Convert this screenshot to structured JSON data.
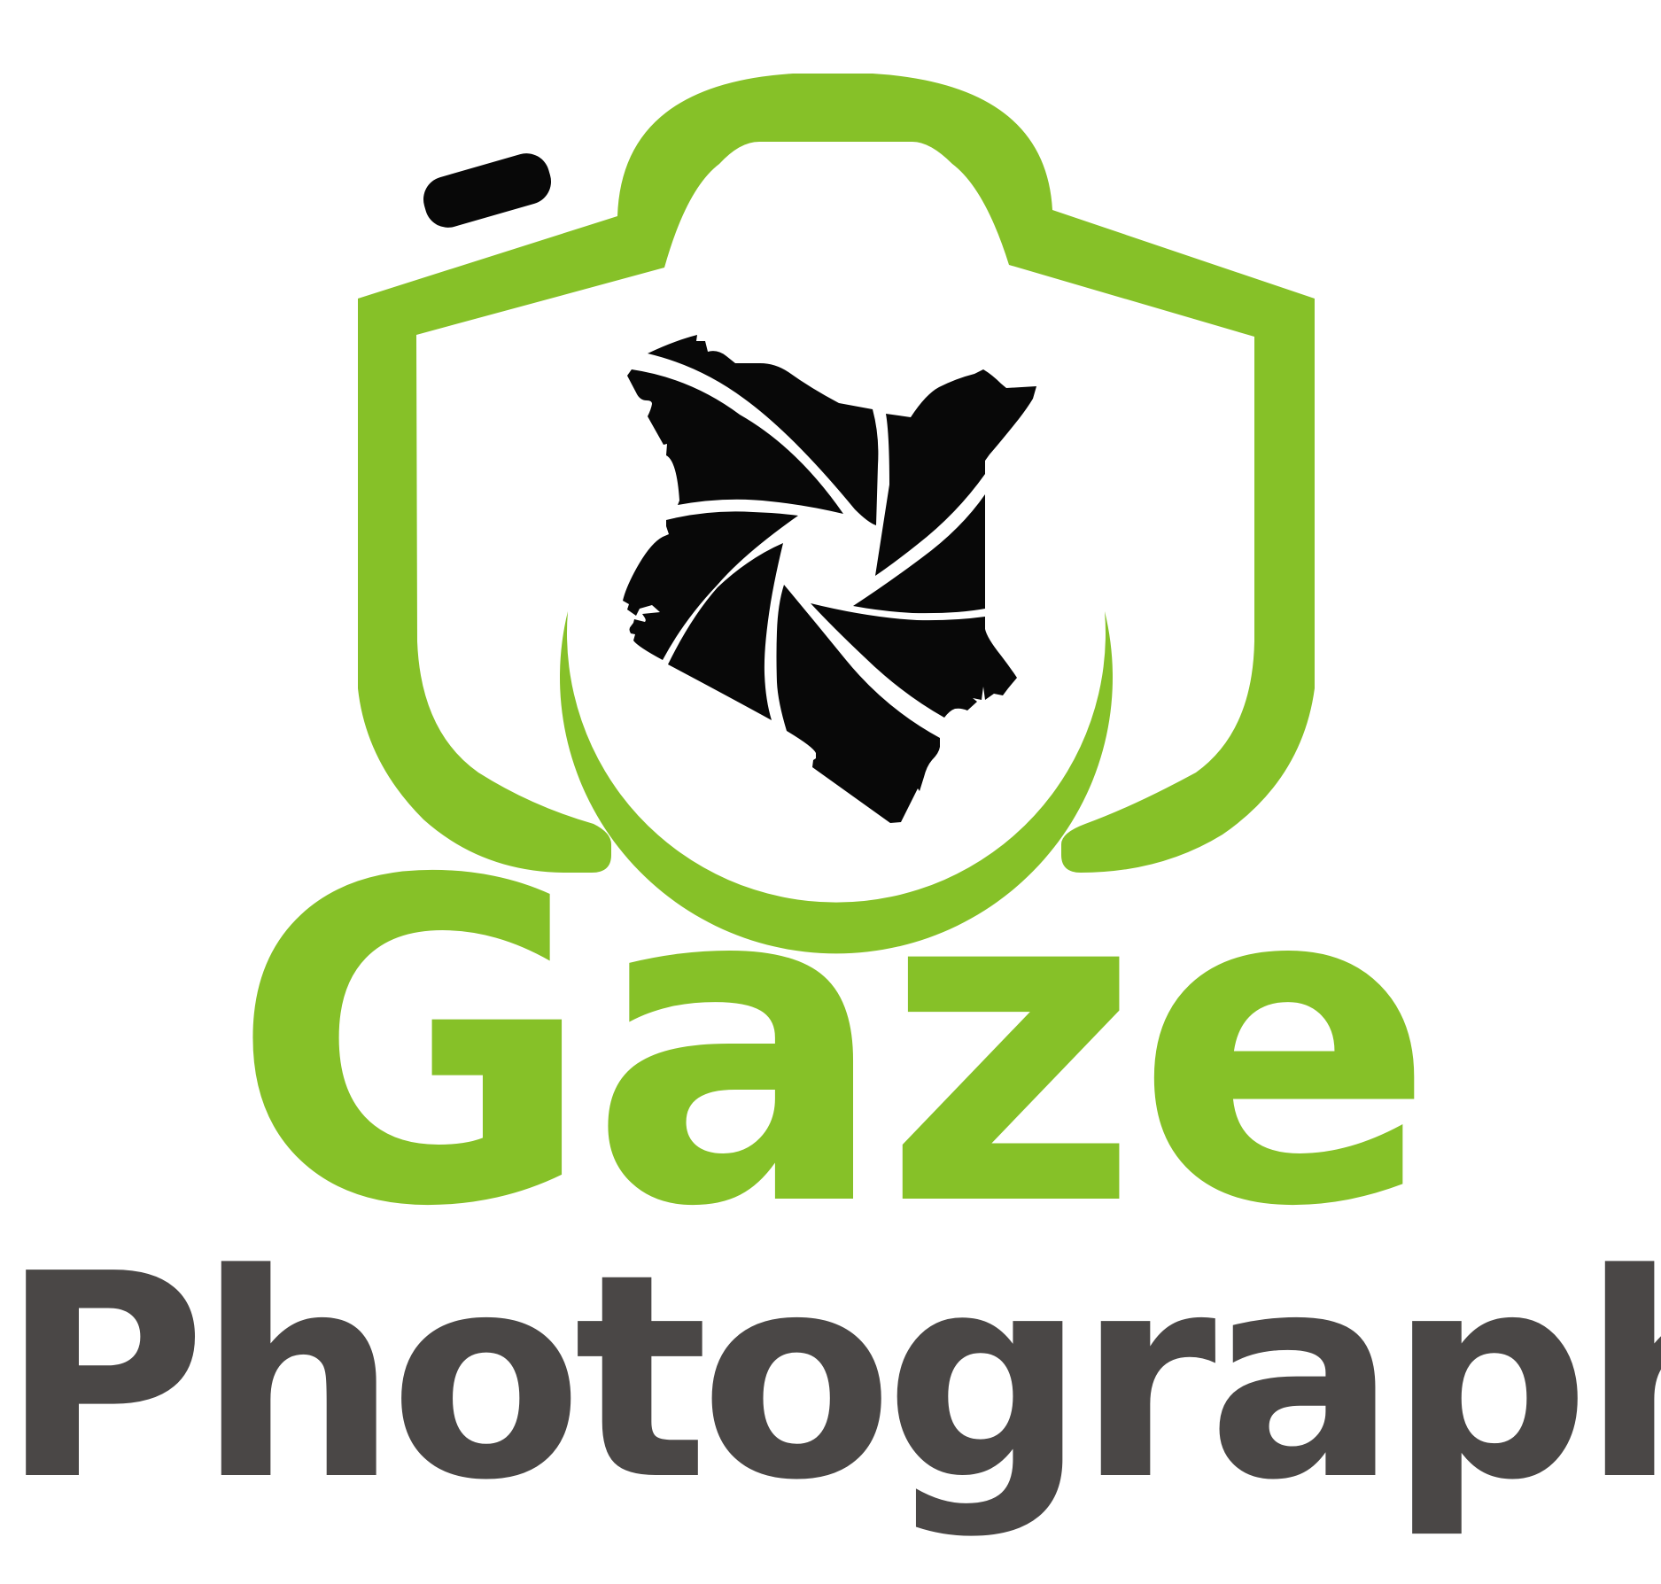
{
  "logo": {
    "brand_name": "Gaze",
    "tagline": "Photography",
    "icon": "camera-with-aperture-shaped-like-kenya-map",
    "colors": {
      "green": "#86C128",
      "dark_gray": "#4A4746",
      "black": "#080808",
      "background": "#FFFFFF"
    }
  }
}
